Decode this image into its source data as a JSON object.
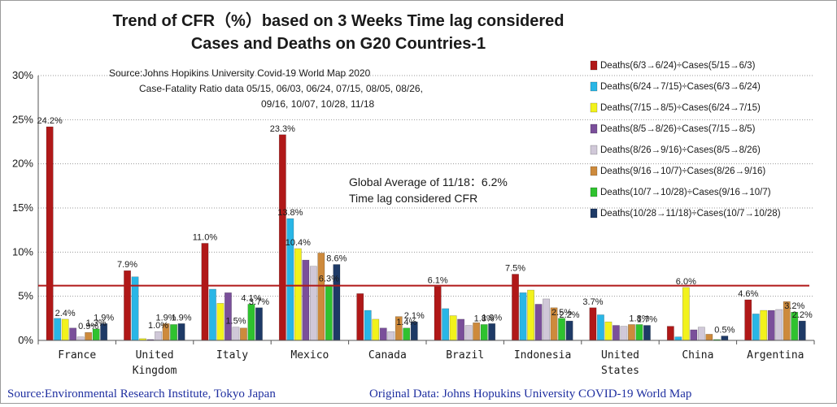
{
  "chart_data": {
    "type": "bar",
    "title_lines": [
      "Trend of CFR（%）based on 3 Weeks Time lag considered",
      "Cases and Deaths on G20 Countries-1"
    ],
    "source_lines": [
      "Source:Johns Hopikins University   Covid-19 World Map 2020",
      "Case-Fatality Ratio data   05/15, 06/03, 06/24,  07/15, 08/05, 08/26,",
      "09/16, 10/07, 10/28,  11/18"
    ],
    "annotation_lines": [
      "Global Average of 11/18：6.2%",
      "Time lag considered CFR"
    ],
    "reference_line": 6.2,
    "ylim": [
      0,
      30
    ],
    "yticks": [
      "0%",
      "5%",
      "10%",
      "15%",
      "20%",
      "25%",
      "30%"
    ],
    "categories": [
      [
        "France"
      ],
      [
        "United",
        "Kingdom"
      ],
      [
        "Italy"
      ],
      [
        "Mexico"
      ],
      [
        "Canada"
      ],
      [
        "Brazil"
      ],
      [
        "Indonesia"
      ],
      [
        "United",
        "States"
      ],
      [
        "China"
      ],
      [
        "Argentina"
      ]
    ],
    "series": [
      {
        "name": "Deaths(6/3→6/24)÷Cases(5/15→6/3)",
        "color": "#b01818",
        "values": [
          24.2,
          7.9,
          11.0,
          23.3,
          5.3,
          6.1,
          7.5,
          3.7,
          1.6,
          4.6
        ]
      },
      {
        "name": "Deaths(6/24→7/15)÷Cases(6/3→6/24)",
        "color": "#29b6e6",
        "values": [
          2.5,
          7.2,
          5.8,
          13.8,
          3.4,
          3.6,
          5.4,
          2.9,
          0.4,
          3.0
        ]
      },
      {
        "name": "Deaths(7/15→8/5)÷Cases(6/24→7/15)",
        "color": "#f2f21c",
        "values": [
          2.4,
          0.2,
          4.2,
          10.4,
          2.4,
          2.8,
          5.7,
          2.1,
          6.0,
          3.4
        ]
      },
      {
        "name": "Deaths(8/5→8/26)÷Cases(7/15→8/5)",
        "color": "#7a4f9a",
        "values": [
          1.4,
          0.1,
          5.4,
          9.1,
          1.4,
          2.4,
          4.1,
          1.7,
          1.2,
          3.4
        ]
      },
      {
        "name": "Deaths(8/26→9/16)÷Cases(8/5→8/26)",
        "color": "#d0c8d8",
        "values": [
          0.4,
          1.0,
          1.5,
          8.4,
          1.0,
          1.7,
          4.7,
          1.6,
          1.5,
          3.5
        ]
      },
      {
        "name": "Deaths(9/16→10/7)÷Cases(8/26→9/16)",
        "color": "#cd8a3c",
        "values": [
          0.9,
          1.9,
          1.4,
          9.9,
          2.7,
          2.0,
          3.7,
          1.8,
          0.7,
          4.4
        ]
      },
      {
        "name": "Deaths(10/7→10/28)÷Cases(9/16→10/7)",
        "color": "#2fc22f",
        "values": [
          1.3,
          1.8,
          4.1,
          6.3,
          1.4,
          1.8,
          2.5,
          1.8,
          0.1,
          3.2
        ]
      },
      {
        "name": "Deaths(10/28→11/18)÷Cases(10/7→10/28)",
        "color": "#1e3a66",
        "values": [
          1.9,
          1.9,
          3.7,
          8.6,
          2.1,
          1.9,
          2.2,
          1.7,
          0.5,
          2.2
        ]
      }
    ],
    "data_labels": [
      {
        "text": "24.2%",
        "group": 0,
        "series": 0,
        "value": 24.2
      },
      {
        "text": "2.4%",
        "group": 0,
        "series": 2,
        "value": 2.4
      },
      {
        "text": "0.9%",
        "group": 0,
        "series": 5,
        "value": 0.9
      },
      {
        "text": "1.3%",
        "group": 0,
        "series": 6,
        "value": 1.3
      },
      {
        "text": "1.9%",
        "group": 0,
        "series": 7,
        "value": 1.9
      },
      {
        "text": "7.9%",
        "group": 1,
        "series": 0,
        "value": 7.9
      },
      {
        "text": "1.0%",
        "group": 1,
        "series": 4,
        "value": 1.0
      },
      {
        "text": "1.9%",
        "group": 1,
        "series": 5,
        "value": 1.9
      },
      {
        "text": "1.9%",
        "group": 1,
        "series": 7,
        "value": 1.9
      },
      {
        "text": "11.0%",
        "group": 2,
        "series": 0,
        "value": 11.0
      },
      {
        "text": "1.5%",
        "group": 2,
        "series": 4,
        "value": 1.5
      },
      {
        "text": "4.1%",
        "group": 2,
        "series": 6,
        "value": 4.1
      },
      {
        "text": "3.7%",
        "group": 2,
        "series": 7,
        "value": 3.7
      },
      {
        "text": "23.3%",
        "group": 3,
        "series": 0,
        "value": 23.3
      },
      {
        "text": "13.8%",
        "group": 3,
        "series": 1,
        "value": 13.8
      },
      {
        "text": "10.4%",
        "group": 3,
        "series": 2,
        "value": 10.4
      },
      {
        "text": "6.3%",
        "group": 3,
        "series": 6,
        "value": 6.3
      },
      {
        "text": "8.6%",
        "group": 3,
        "series": 7,
        "value": 8.6
      },
      {
        "text": "1.4%",
        "group": 4,
        "series": 6,
        "value": 1.4
      },
      {
        "text": "2.1%",
        "group": 4,
        "series": 7,
        "value": 2.1
      },
      {
        "text": "6.1%",
        "group": 5,
        "series": 0,
        "value": 6.1
      },
      {
        "text": "1.8%",
        "group": 5,
        "series": 6,
        "value": 1.8
      },
      {
        "text": "1.9%",
        "group": 5,
        "series": 7,
        "value": 1.9
      },
      {
        "text": "7.5%",
        "group": 6,
        "series": 0,
        "value": 7.5
      },
      {
        "text": "2.5%",
        "group": 6,
        "series": 6,
        "value": 2.5
      },
      {
        "text": "2.2%",
        "group": 6,
        "series": 7,
        "value": 2.2
      },
      {
        "text": "3.7%",
        "group": 7,
        "series": 0,
        "value": 3.7
      },
      {
        "text": "1.8%",
        "group": 7,
        "series": 6,
        "value": 1.8
      },
      {
        "text": "1.7%",
        "group": 7,
        "series": 7,
        "value": 1.7
      },
      {
        "text": "6.0%",
        "group": 8,
        "series": 2,
        "value": 6.0
      },
      {
        "text": "0.5%",
        "group": 8,
        "series": 7,
        "value": 0.5
      },
      {
        "text": "4.6%",
        "group": 9,
        "series": 0,
        "value": 4.6
      },
      {
        "text": "3.2%",
        "group": 9,
        "series": 6,
        "value": 3.2
      },
      {
        "text": "2.2%",
        "group": 9,
        "series": 7,
        "value": 2.2
      }
    ],
    "legend_placement": "right",
    "grid": "horizontal-dotted"
  },
  "footer": {
    "left": "Source:Environmental Research Institute, Tokyo Japan",
    "right": "Original Data: Johns Hopukins University COVID-19 World Map"
  }
}
